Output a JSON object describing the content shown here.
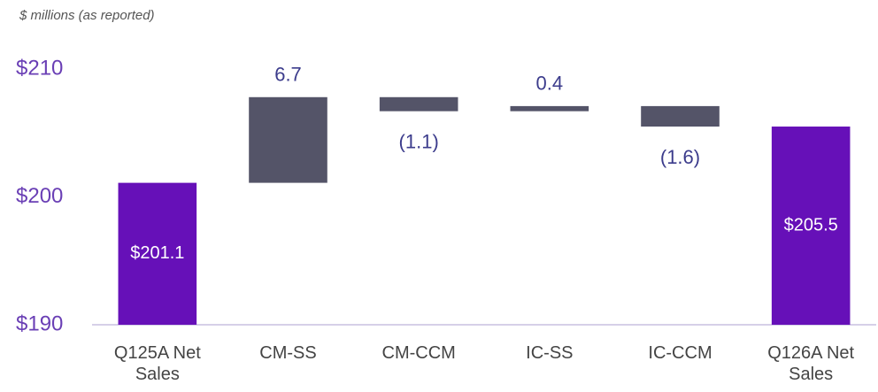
{
  "chart_data": {
    "type": "waterfall",
    "subtitle": "$ millions (as reported)",
    "categories": [
      "Q125A Net Sales",
      "CM-SS",
      "CM-CCM",
      "IC-SS",
      "IC-CCM",
      "Q126A Net Sales"
    ],
    "values": [
      201.1,
      6.7,
      -1.1,
      0.4,
      -1.6,
      205.5
    ],
    "value_labels": [
      "$201.1",
      "6.7",
      "(1.1)",
      "0.4",
      "(1.6)",
      "$205.5"
    ],
    "measure": [
      "absolute",
      "relative",
      "relative",
      "relative",
      "relative",
      "absolute"
    ],
    "total_color": "#6610b8",
    "delta_color": "#545468",
    "ylim": [
      190,
      210
    ],
    "yticks": [
      {
        "value": 190,
        "label": "$190"
      },
      {
        "value": 200,
        "label": "$200"
      },
      {
        "value": 210,
        "label": "$210"
      }
    ],
    "grid": false
  }
}
